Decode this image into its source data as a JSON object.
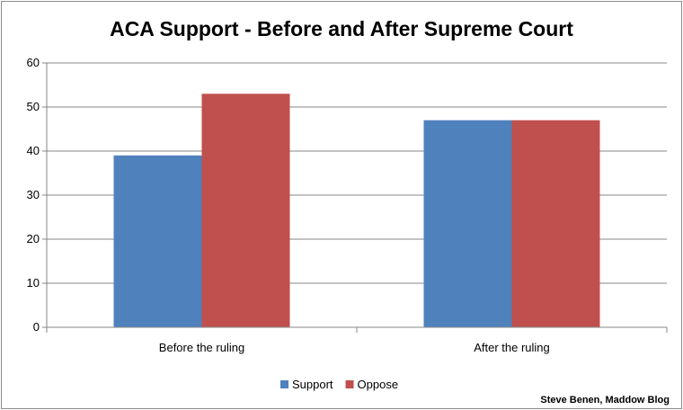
{
  "chart_data": {
    "type": "bar",
    "title": "ACA Support - Before and After Supreme Court",
    "categories": [
      "Before the ruling",
      "After the ruling"
    ],
    "series": [
      {
        "name": "Support",
        "values": [
          39,
          47
        ],
        "color": "#4f81bd"
      },
      {
        "name": "Oppose",
        "values": [
          53,
          47
        ],
        "color": "#c0504d"
      }
    ],
    "xlabel": "",
    "ylabel": "",
    "ylim": [
      0,
      60
    ],
    "yticks": [
      0,
      10,
      20,
      30,
      40,
      50,
      60
    ],
    "grid": true,
    "legend_position": "bottom"
  },
  "credit": "Steve Benen, Maddow Blog"
}
